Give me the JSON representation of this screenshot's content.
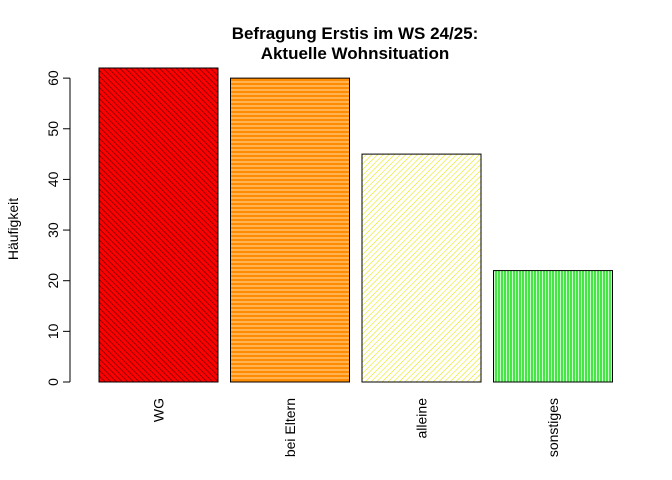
{
  "chart_data": {
    "type": "bar",
    "title": [
      "Befragung Erstis im WS 24/25:",
      "Aktuelle Wohnsituation"
    ],
    "xlabel": "",
    "ylabel": "Häufigkeit",
    "categories": [
      "WG",
      "bei Eltern",
      "alleine",
      "sonstiges"
    ],
    "values": [
      62,
      60,
      45,
      22
    ],
    "colors": [
      "#ff0000",
      "#ff8c00",
      "#ffff00",
      "#00ff00"
    ],
    "fill_patterns": [
      "diagonal-dense-dark",
      "horizontal",
      "diagonal",
      "vertical"
    ],
    "ylim": [
      0,
      62
    ],
    "yticks": [
      0,
      10,
      20,
      30,
      40,
      50,
      60
    ],
    "grid": false,
    "legend": "none"
  }
}
